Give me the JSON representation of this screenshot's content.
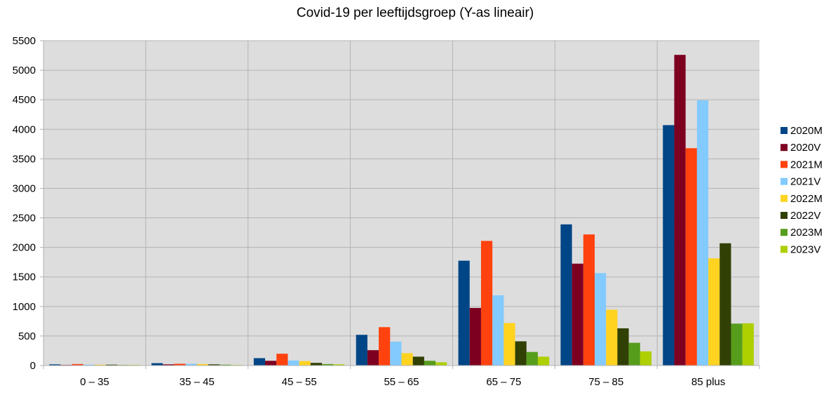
{
  "chart_data": {
    "type": "bar",
    "title": "Covid-19 per leeftijdsgroep (Y-as lineair)",
    "xlabel": "",
    "ylabel": "",
    "ylim": [
      0,
      5500
    ],
    "yticks": [
      "0",
      "500",
      "1000",
      "1500",
      "2000",
      "2500",
      "3000",
      "3500",
      "4000",
      "4500",
      "5000",
      "5500"
    ],
    "grid": true,
    "legend_position": "right",
    "categories": [
      "0 – 35",
      "35 – 45",
      "45 – 55",
      "55 – 65",
      "65 – 75",
      "75 – 85",
      "85 plus"
    ],
    "series": [
      {
        "name": "2020M",
        "color": "#004586",
        "values": [
          20,
          40,
          125,
          520,
          1775,
          2390,
          4070
        ]
      },
      {
        "name": "2020V",
        "color": "#7e0021",
        "values": [
          10,
          20,
          80,
          260,
          975,
          1725,
          5260
        ]
      },
      {
        "name": "2021M",
        "color": "#ff420e",
        "values": [
          25,
          30,
          200,
          650,
          2110,
          2220,
          3680
        ]
      },
      {
        "name": "2021V",
        "color": "#83caff",
        "values": [
          15,
          30,
          85,
          405,
          1190,
          1565,
          4490
        ]
      },
      {
        "name": "2022M",
        "color": "#ffd320",
        "values": [
          15,
          25,
          75,
          210,
          720,
          945,
          1815
        ]
      },
      {
        "name": "2022V",
        "color": "#314004",
        "values": [
          15,
          20,
          45,
          150,
          410,
          630,
          2070
        ]
      },
      {
        "name": "2023M",
        "color": "#579d1c",
        "values": [
          10,
          15,
          25,
          80,
          230,
          385,
          710
        ]
      },
      {
        "name": "2023V",
        "color": "#aecf00",
        "values": [
          10,
          10,
          20,
          55,
          150,
          240,
          715
        ]
      }
    ]
  }
}
